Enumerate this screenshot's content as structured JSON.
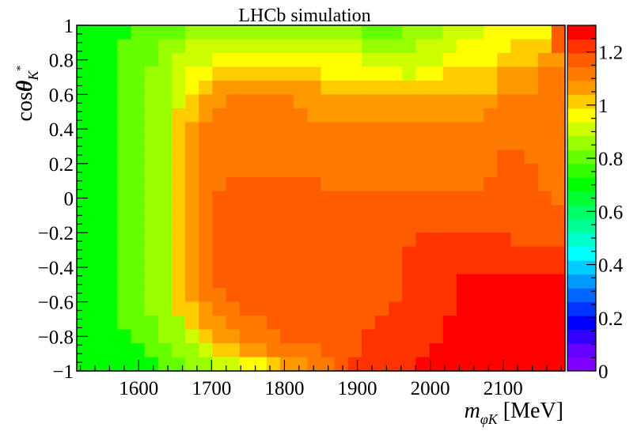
{
  "chart_data": {
    "type": "heatmap",
    "title": "LHCb simulation",
    "xlabel": {
      "main": "m",
      "sub": "φK",
      "unit": " [MeV]"
    },
    "ylabel": {
      "main": "cos",
      "theta": "θ",
      "sub": "K",
      "sup": "*"
    },
    "xlim": [
      1515,
      2185
    ],
    "ylim": [
      -1,
      1
    ],
    "zlim": [
      0,
      1.3
    ],
    "x_ticks": [
      "1600",
      "1700",
      "1800",
      "1900",
      "2000",
      "2100"
    ],
    "x_tick_values": [
      1600,
      1700,
      1800,
      1900,
      2000,
      2100
    ],
    "y_ticks": [
      "−1",
      "−0.8",
      "−0.6",
      "−0.4",
      "−0.2",
      "0",
      "0.2",
      "0.4",
      "0.6",
      "0.8",
      "1"
    ],
    "y_tick_values": [
      -1,
      -0.8,
      -0.6,
      -0.4,
      -0.2,
      0,
      0.2,
      0.4,
      0.6,
      0.8,
      1
    ],
    "z_ticks": [
      "0",
      "0.2",
      "0.4",
      "0.6",
      "0.8",
      "1",
      "1.2"
    ],
    "z_tick_values": [
      0,
      0.2,
      0.4,
      0.6,
      0.8,
      1.0,
      1.2
    ],
    "colorbar_colors": [
      "#8000ff",
      "#6600ff",
      "#3300ff",
      "#0000ff",
      "#0033ff",
      "#0066ff",
      "#0099ff",
      "#00ccff",
      "#00ffff",
      "#00ffcc",
      "#00ff99",
      "#00ff66",
      "#00ff33",
      "#00ff00",
      "#33ff00",
      "#66ff00",
      "#99ff00",
      "#ccff00",
      "#ffff00",
      "#ffcc00",
      "#ff9900",
      "#ff7a00",
      "#ff5c00",
      "#ff3300",
      "#ff0000"
    ],
    "x_bins": 36,
    "y_bins": 25,
    "surface_model": {
      "description_free_params": true,
      "base": 0.55,
      "grid_rows_top_to_bottom": [
        "55556666777777777777766677788899999D",
        "55566677888888888888877778889999AAAD",
        "5556667888999999999998888889999AAABB",
        "5556677899AAAAAAAA999999899AAAABBBCC",
        "555667789ABBBBBBBBAAAAAAAAAAAAABBBCC",
        "55566778ABBCCCCCBBBBBBBBBBBBBBBCCCCC",
        "5556677AABCCCCCCCBBBBBBBBBBBBBCCCCCC",
        "5556677ABCCCCCCCCCCCCCCCCCCCCCCCCCCC",
        "5556677ABCCCCCCCCCCCCCCCCCCCCCCCCCCC",
        "5556677ABCCCCCCCCCCCCCCCCCCCCCCDDCCC",
        "5556677ABCCCCCCCCCCCCCCCCCCCCCCDDDCC",
        "5556677ABCCDDDDDDDCCCCCCCCCCCCDDDDCC",
        "5556677ABCDDDDDDDDDDDDDDDDDDDDDDDDDC",
        "5556677ABCDDDDDDDDDDDDDDDDDDDDDDDDDD",
        "5556677ABCDDDDDDDDDDDDDDDDDDDDDDDDDD",
        "5556677ABCDDDDDDDDDDDDDDDEEEEEEEDDDD",
        "5556677ABCDDDDDDDDDDDDDDEEEEEEEEEEEE",
        "5556677ABCDDDDDDDDDDDDDDEEEEEEEEEEEE",
        "5556677ABCDDDDDDDDDDDDDDEEEEFFFFFFFF",
        "5556677ABCCDDDDDDDDDDDDDEEEEFFFFFFFF",
        "5556677AABCCDDDDDDDDDDDEEEEEFFFFFFFF",
        "55566677ABBCCCDDDDDDDDEEEEEFFFFFFFFF",
        "555566778ABBCCCDDDDDDEEEEEEFFFFFFFFF",
        "5555566778AABBCCCCDDDEEEEEFFFFFFFFFF",
        "55555566778899ABBCCDEEEEEFFFFFFFFFFF"
      ],
      "level_values": {
        "5": 0.7,
        "6": 0.78,
        "7": 0.86,
        "8": 0.92,
        "9": 0.98,
        "A": 1.02,
        "B": 1.07,
        "C": 1.12,
        "D": 1.17,
        "E": 1.22,
        "F": 1.27
      }
    }
  }
}
